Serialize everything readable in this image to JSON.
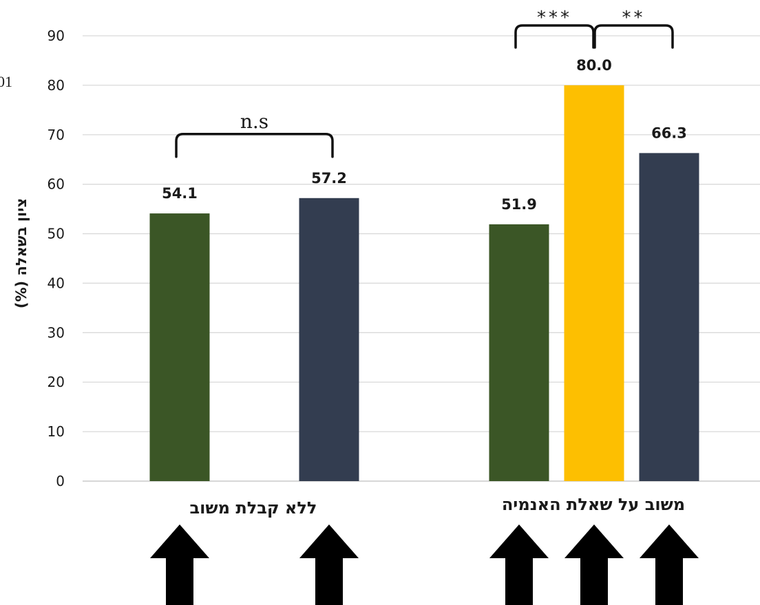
{
  "chart_data": {
    "type": "bar",
    "ylabel": "ציון בשאלה (%)",
    "ylim": [
      0,
      90
    ],
    "yticks": [
      0,
      10,
      20,
      30,
      40,
      50,
      60,
      70,
      80,
      90
    ],
    "grid": true,
    "groups": [
      {
        "label": "ללא קבלת משוב",
        "bars": [
          {
            "value": 54.1,
            "label": "54.1",
            "color": "#3b5626"
          },
          {
            "value": 57.2,
            "label": "57.2",
            "color": "#333d50"
          }
        ]
      },
      {
        "label": "משוב על שאלת האנמיה",
        "bars": [
          {
            "value": 51.9,
            "label": "51.9",
            "color": "#3b5626"
          },
          {
            "value": 80.0,
            "label": "80.0",
            "color": "#fdbf01"
          },
          {
            "value": 66.3,
            "label": "66.3",
            "color": "#333d50"
          }
        ]
      }
    ],
    "significance": [
      {
        "label": "n.s",
        "group": 0,
        "from": 0,
        "to": 1
      },
      {
        "label": "***",
        "group": 1,
        "from": 0,
        "to": 1
      },
      {
        "label": "**",
        "group": 1,
        "from": 1,
        "to": 2
      }
    ],
    "arrows": 5,
    "clipped_text": "01"
  }
}
